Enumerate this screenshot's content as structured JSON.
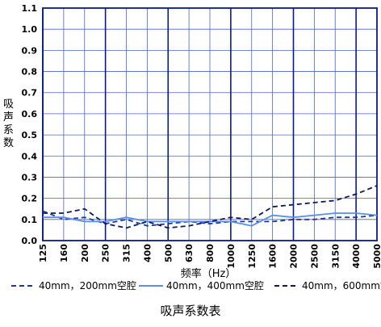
{
  "chart_data": {
    "type": "line",
    "xlabel": "频率（Hz）",
    "ylabel": "吸声系数",
    "caption": "吸声系数表",
    "categories": [
      "125",
      "160",
      "200",
      "250",
      "315",
      "400",
      "500",
      "630",
      "800",
      "1000",
      "1250",
      "1600",
      "2000",
      "2500",
      "3150",
      "4000",
      "5000"
    ],
    "yticks": [
      "0.0",
      "0.1",
      "0.2",
      "0.3",
      "0.4",
      "0.5",
      "0.6",
      "0.7",
      "0.8",
      "0.9",
      "1.0",
      "1.1"
    ],
    "ylim": [
      0,
      1.1
    ],
    "grid": true,
    "legend_position": "bottom",
    "series": [
      {
        "name": "40mm，200mm空腔",
        "style": "dashed",
        "color": "#1a3aa0",
        "values": [
          0.14,
          0.1,
          0.11,
          0.08,
          0.1,
          0.07,
          0.08,
          0.09,
          0.08,
          0.09,
          0.09,
          0.09,
          0.1,
          0.1,
          0.11,
          0.11,
          0.12
        ]
      },
      {
        "name": "40mm，400mm空腔",
        "style": "solid",
        "color": "#5a8ee8",
        "values": [
          0.11,
          0.11,
          0.09,
          0.09,
          0.11,
          0.09,
          0.09,
          0.09,
          0.09,
          0.09,
          0.07,
          0.12,
          0.11,
          0.12,
          0.13,
          0.13,
          0.12
        ]
      },
      {
        "name": "40mm，600mm空腔",
        "style": "dashed",
        "color": "#0d1a5a",
        "values": [
          0.13,
          0.13,
          0.15,
          0.08,
          0.06,
          0.09,
          0.06,
          0.07,
          0.09,
          0.11,
          0.1,
          0.16,
          0.17,
          0.18,
          0.19,
          0.22,
          0.26
        ]
      }
    ]
  }
}
